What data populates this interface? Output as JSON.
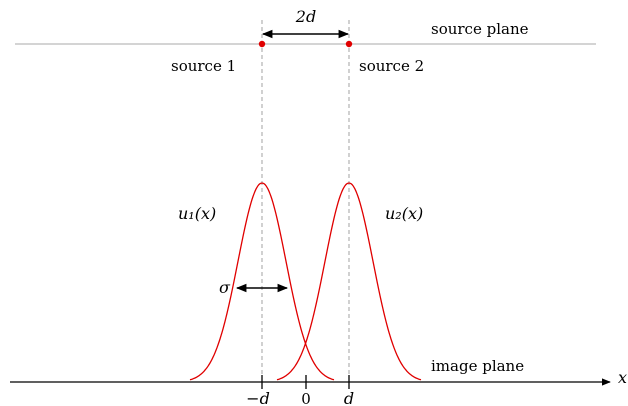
{
  "labels": {
    "separation": "2d",
    "source_plane": "source plane",
    "image_plane": "image plane",
    "source1": "source 1",
    "source2": "source 2",
    "u1": "u₁(x)",
    "u2": "u₂(x)",
    "sigma": "σ",
    "x_axis": "x",
    "tick_neg_d": "−d",
    "tick_zero": "0",
    "tick_d": "d"
  },
  "colors": {
    "curve": "#e00000",
    "source_dot": "#e00000",
    "source_plane_line": "#aaaaaa",
    "guide_line": "#999999",
    "axis": "#000000"
  }
}
